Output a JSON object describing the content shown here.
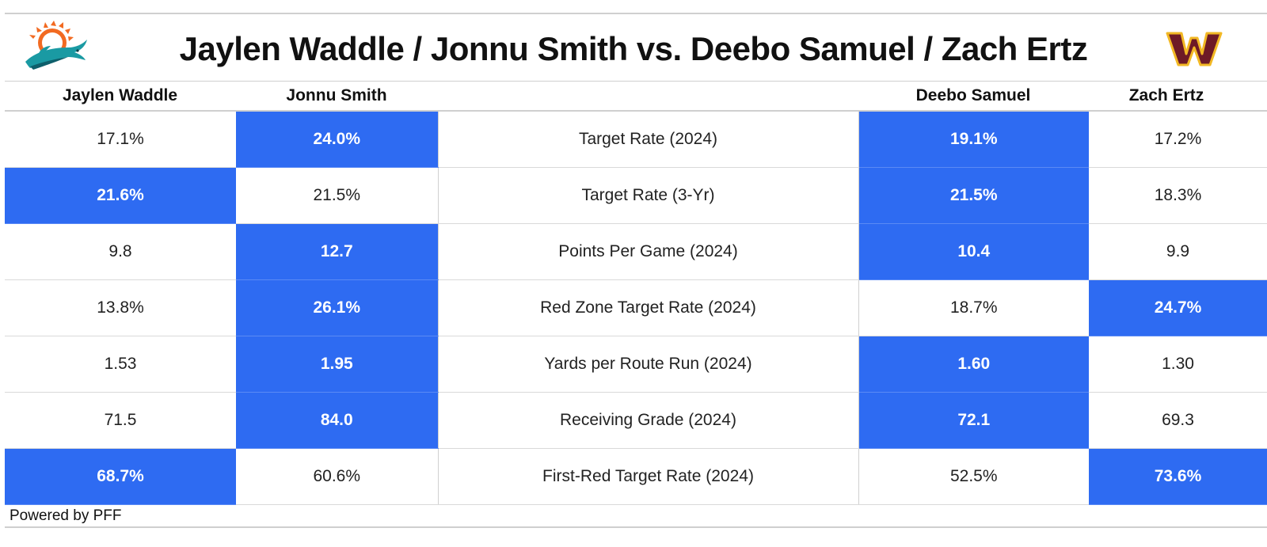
{
  "title": "Jaylen Waddle / Jonnu Smith vs. Deebo Samuel / Zach Ertz",
  "colors": {
    "highlight": "#2e6bf2",
    "dolphins_aqua": "#1a9aa3",
    "dolphins_orange": "#f26a21",
    "commanders_burgundy": "#6e1a26",
    "commanders_gold": "#f2b824"
  },
  "logos": {
    "left": "dolphins-logo",
    "right": "commanders-logo"
  },
  "columns": {
    "p1": "Jaylen Waddle",
    "p2": "Jonnu Smith",
    "metric": "",
    "p3": "Deebo Samuel",
    "p4": "Zach Ertz"
  },
  "rows": [
    {
      "metric": "Target Rate (2024)",
      "p1": "17.1%",
      "p2": "24.0%",
      "p3": "19.1%",
      "p4": "17.2%"
    },
    {
      "metric": "Target Rate (3-Yr)",
      "p1": "21.6%",
      "p2": "21.5%",
      "p3": "21.5%",
      "p4": "18.3%"
    },
    {
      "metric": "Points Per Game (2024)",
      "p1": "9.8",
      "p2": "12.7",
      "p3": "10.4",
      "p4": "9.9"
    },
    {
      "metric": "Red Zone Target Rate (2024)",
      "p1": "13.8%",
      "p2": "26.1%",
      "p3": "18.7%",
      "p4": "24.7%"
    },
    {
      "metric": "Yards per Route Run (2024)",
      "p1": "1.53",
      "p2": "1.95",
      "p3": "1.60",
      "p4": "1.30"
    },
    {
      "metric": "Receiving Grade (2024)",
      "p1": "71.5",
      "p2": "84.0",
      "p3": "72.1",
      "p4": "69.3"
    },
    {
      "metric": "First-Red Target Rate (2024)",
      "p1": "68.7%",
      "p2": "60.6%",
      "p3": "52.5%",
      "p4": "73.6%"
    }
  ],
  "highlighted": {
    "p1": [
      false,
      true,
      false,
      false,
      false,
      false,
      true
    ],
    "p2": [
      true,
      false,
      true,
      true,
      true,
      true,
      false
    ],
    "p3": [
      true,
      true,
      true,
      false,
      true,
      true,
      false
    ],
    "p4": [
      false,
      false,
      false,
      true,
      false,
      false,
      true
    ]
  },
  "footer": "Powered by PFF"
}
